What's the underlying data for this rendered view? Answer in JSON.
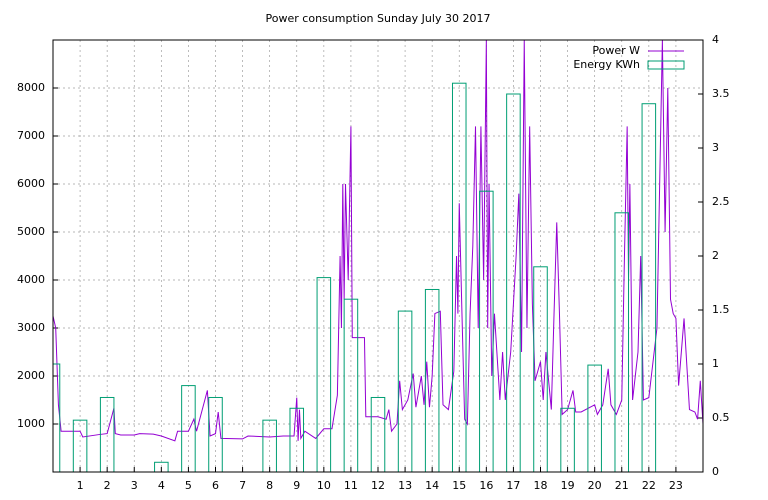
{
  "chart_data": {
    "type": "line",
    "title": "Power consumption Sunday July 30 2017",
    "xlim": [
      0,
      24
    ],
    "xticks": [
      1,
      2,
      3,
      4,
      5,
      6,
      7,
      8,
      9,
      10,
      11,
      12,
      13,
      14,
      15,
      16,
      17,
      18,
      19,
      20,
      21,
      22,
      23
    ],
    "ylim": [
      0,
      9000
    ],
    "yticks": [
      1000,
      2000,
      3000,
      4000,
      5000,
      6000,
      7000,
      8000
    ],
    "y2lim": [
      0,
      4
    ],
    "y2ticks": [
      0,
      0.5,
      1,
      1.5,
      2,
      2.5,
      3,
      3.5,
      4
    ],
    "grid": true,
    "legend": "top-right",
    "series": [
      {
        "name": "Power W",
        "color": "#9400d3",
        "type": "line",
        "x": [
          0,
          0.1,
          0.2,
          0.3,
          1.0,
          1.1,
          1.7,
          2.0,
          2.25,
          2.3,
          2.5,
          3,
          3.2,
          3.7,
          4.0,
          4.5,
          4.6,
          5.0,
          5.2,
          5.3,
          5.7,
          5.8,
          6.0,
          6.1,
          6.2,
          7.0,
          7.2,
          8.0,
          8.5,
          8.9,
          9.0,
          9.05,
          9.1,
          9.15,
          9.3,
          9.7,
          10.0,
          10.3,
          10.5,
          10.6,
          10.65,
          10.7,
          10.75,
          10.8,
          10.9,
          11.0,
          11.05,
          11.5,
          11.55,
          12.0,
          12.3,
          12.4,
          12.5,
          12.7,
          12.8,
          12.9,
          13.1,
          13.3,
          13.4,
          13.6,
          13.7,
          13.8,
          13.9,
          14.0,
          14.1,
          14.3,
          14.4,
          14.6,
          14.8,
          14.9,
          14.95,
          15.0,
          15.1,
          15.2,
          15.3,
          15.4,
          15.5,
          15.6,
          15.7,
          15.8,
          15.9,
          16.0,
          16.05,
          16.1,
          16.2,
          16.3,
          16.5,
          16.6,
          16.7,
          16.9,
          17.0,
          17.1,
          17.2,
          17.3,
          17.4,
          17.5,
          17.6,
          17.7,
          17.8,
          18.0,
          18.1,
          18.2,
          18.4,
          18.5,
          18.6,
          18.7,
          18.8,
          19.0,
          19.2,
          19.3,
          19.5,
          20.0,
          20.1,
          20.3,
          20.5,
          20.6,
          20.8,
          21.0,
          21.1,
          21.2,
          21.25,
          21.3,
          21.4,
          21.6,
          21.7,
          21.8,
          22.0,
          22.3,
          22.4,
          22.5,
          22.6,
          22.7,
          22.8,
          22.9,
          23.0,
          23.1,
          23.3,
          23.5,
          23.7,
          23.8,
          23.9,
          24.0
        ],
        "values": [
          3250,
          3000,
          1400,
          850,
          850,
          730,
          780,
          800,
          1330,
          800,
          770,
          770,
          800,
          790,
          750,
          650,
          850,
          850,
          1100,
          850,
          1700,
          750,
          800,
          1250,
          700,
          690,
          750,
          730,
          750,
          750,
          1550,
          650,
          1300,
          700,
          850,
          700,
          900,
          900,
          1600,
          4500,
          3000,
          6000,
          3600,
          6000,
          4000,
          7200,
          2800,
          2800,
          1150,
          1150,
          1100,
          1300,
          850,
          1000,
          1900,
          1300,
          1500,
          2050,
          1350,
          2000,
          1400,
          2300,
          1350,
          2000,
          3300,
          3350,
          1400,
          1300,
          2100,
          4500,
          3300,
          5600,
          3300,
          1100,
          1000,
          3300,
          4700,
          7200,
          3000,
          7200,
          4000,
          9000,
          3000,
          6000,
          2000,
          3300,
          1500,
          2500,
          1500,
          2500,
          3500,
          4500,
          5800,
          2500,
          9000,
          3000,
          7200,
          3500,
          1900,
          2300,
          1500,
          2500,
          1300,
          3300,
          5200,
          3300,
          1200,
          1300,
          1700,
          1250,
          1250,
          1400,
          1200,
          1400,
          2150,
          1400,
          1200,
          1500,
          4500,
          7200,
          4000,
          6000,
          1500,
          2500,
          4500,
          1500,
          1550,
          3000,
          6000,
          9000,
          5000,
          8000,
          3600,
          3300,
          3200,
          1800,
          3200,
          1300,
          1250,
          1100,
          1900,
          1000
        ]
      },
      {
        "name": "Energy KWh",
        "color": "#009e73",
        "type": "bar",
        "axis": "y2",
        "x": [
          0,
          1,
          2,
          3,
          4,
          5,
          6,
          7,
          8,
          9,
          10,
          11,
          12,
          13,
          14,
          15,
          16,
          17,
          18,
          19,
          20,
          21,
          22,
          23
        ],
        "values": [
          1.0,
          0.48,
          0.69,
          null,
          0.09,
          0.8,
          0.69,
          null,
          0.48,
          0.59,
          1.8,
          1.6,
          0.69,
          1.49,
          1.69,
          3.6,
          2.6,
          3.5,
          1.9,
          0.59,
          0.99,
          2.4,
          3.41,
          null
        ]
      }
    ]
  }
}
